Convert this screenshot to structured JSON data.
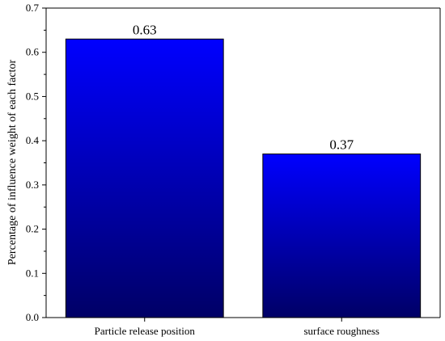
{
  "chart_data": {
    "type": "bar",
    "categories": [
      "Particle release position",
      "surface roughness"
    ],
    "values": [
      0.63,
      0.37
    ],
    "data_labels": [
      "0.63",
      "0.37"
    ],
    "title": "",
    "xlabel": "",
    "ylabel": "Percentage of influence weight of each factor",
    "ylim": [
      0.0,
      0.7
    ],
    "yticks": [
      "0.0",
      "0.1",
      "0.2",
      "0.3",
      "0.4",
      "0.5",
      "0.6",
      "0.7"
    ],
    "grid": false,
    "legend": "none",
    "colors": {
      "bar_top": "#0000ff",
      "bar_bottom": "#000066",
      "bar_edge": "#000000"
    }
  }
}
